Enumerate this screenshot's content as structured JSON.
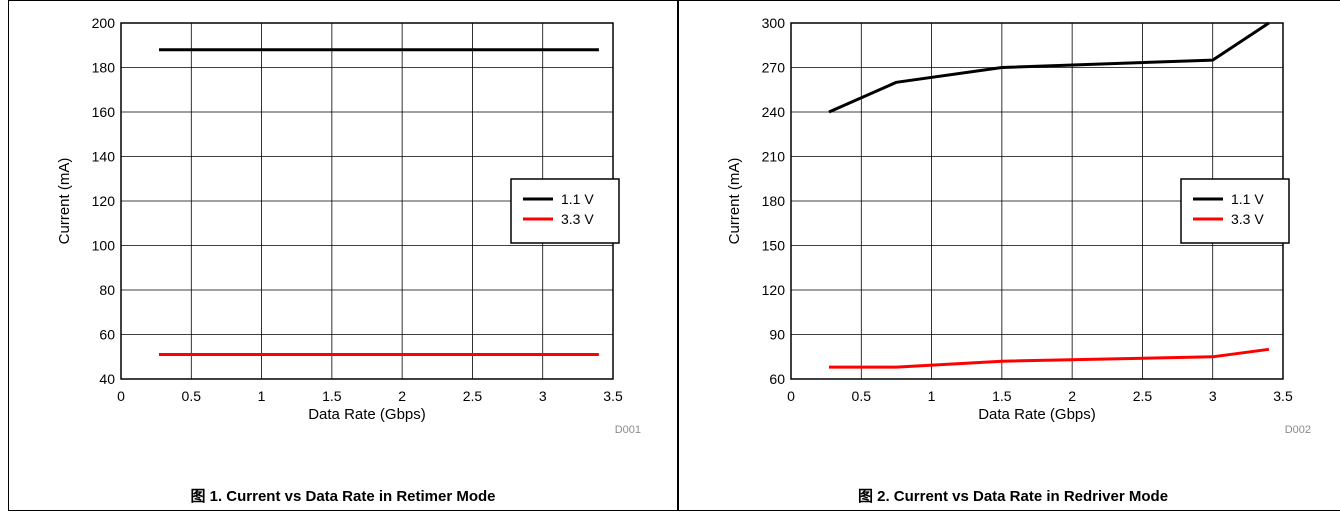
{
  "figures": [
    {
      "caption": "图 1. Current vs Data Rate in Retimer Mode",
      "figure_id": "D001"
    },
    {
      "caption": "图 2. Current vs Data Rate in Redriver Mode",
      "figure_id": "D002"
    }
  ],
  "chart_data": [
    {
      "type": "line",
      "xlabel": "Data Rate (Gbps)",
      "ylabel": "Current (mA)",
      "xlim": [
        0,
        3.5
      ],
      "ylim": [
        40,
        200
      ],
      "xticks": [
        "0",
        "0.5",
        "1",
        "1.5",
        "2",
        "2.5",
        "3",
        "3.5"
      ],
      "yticks": [
        "40",
        "60",
        "80",
        "100",
        "120",
        "140",
        "160",
        "180",
        "200"
      ],
      "grid": true,
      "legend_position": "right",
      "series": [
        {
          "name": "1.1 V",
          "color": "#000000",
          "x": [
            0.27,
            3.4
          ],
          "y": [
            188,
            188
          ]
        },
        {
          "name": "3.3 V",
          "color": "#ff0000",
          "x": [
            0.27,
            3.4
          ],
          "y": [
            51,
            51
          ]
        }
      ]
    },
    {
      "type": "line",
      "xlabel": "Data Rate (Gbps)",
      "ylabel": "Current (mA)",
      "xlim": [
        0,
        3.5
      ],
      "ylim": [
        60,
        300
      ],
      "xticks": [
        "0",
        "0.5",
        "1",
        "1.5",
        "2",
        "2.5",
        "3",
        "3.5"
      ],
      "yticks": [
        "60",
        "90",
        "120",
        "150",
        "180",
        "210",
        "240",
        "270",
        "300"
      ],
      "grid": true,
      "legend_position": "right",
      "series": [
        {
          "name": "1.1 V",
          "color": "#000000",
          "x": [
            0.27,
            0.75,
            1.5,
            3.0,
            3.4
          ],
          "y": [
            240,
            260,
            270,
            275,
            300
          ]
        },
        {
          "name": "3.3 V",
          "color": "#ff0000",
          "x": [
            0.27,
            0.75,
            1.5,
            3.0,
            3.4
          ],
          "y": [
            68,
            68,
            72,
            75,
            80
          ]
        }
      ]
    }
  ]
}
